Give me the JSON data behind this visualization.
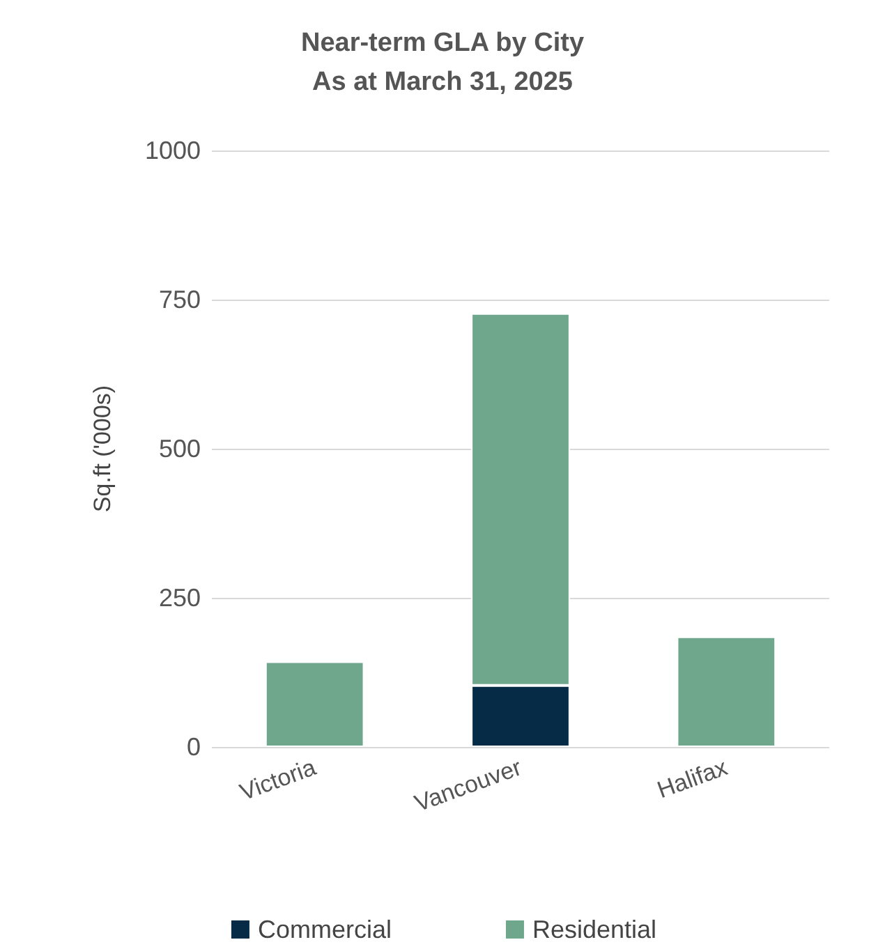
{
  "chart_data": {
    "type": "bar",
    "title": "Near-term GLA by City\nAs at March 31, 2025",
    "ylabel": "Sq.ft ('000s)",
    "categories": [
      "Victoria",
      "Vancouver",
      "Halifax"
    ],
    "stacked": true,
    "series": [
      {
        "name": "Commercial",
        "color": "#052b47",
        "values": [
          null,
          103,
          null
        ]
      },
      {
        "name": "Residential",
        "color": "#6fa78c",
        "values": [
          143,
          624,
          185
        ]
      }
    ],
    "ylim": [
      0,
      1000
    ],
    "yticks": [
      0,
      250,
      500,
      750,
      1000
    ],
    "grid": "y",
    "legend": "bottom"
  }
}
